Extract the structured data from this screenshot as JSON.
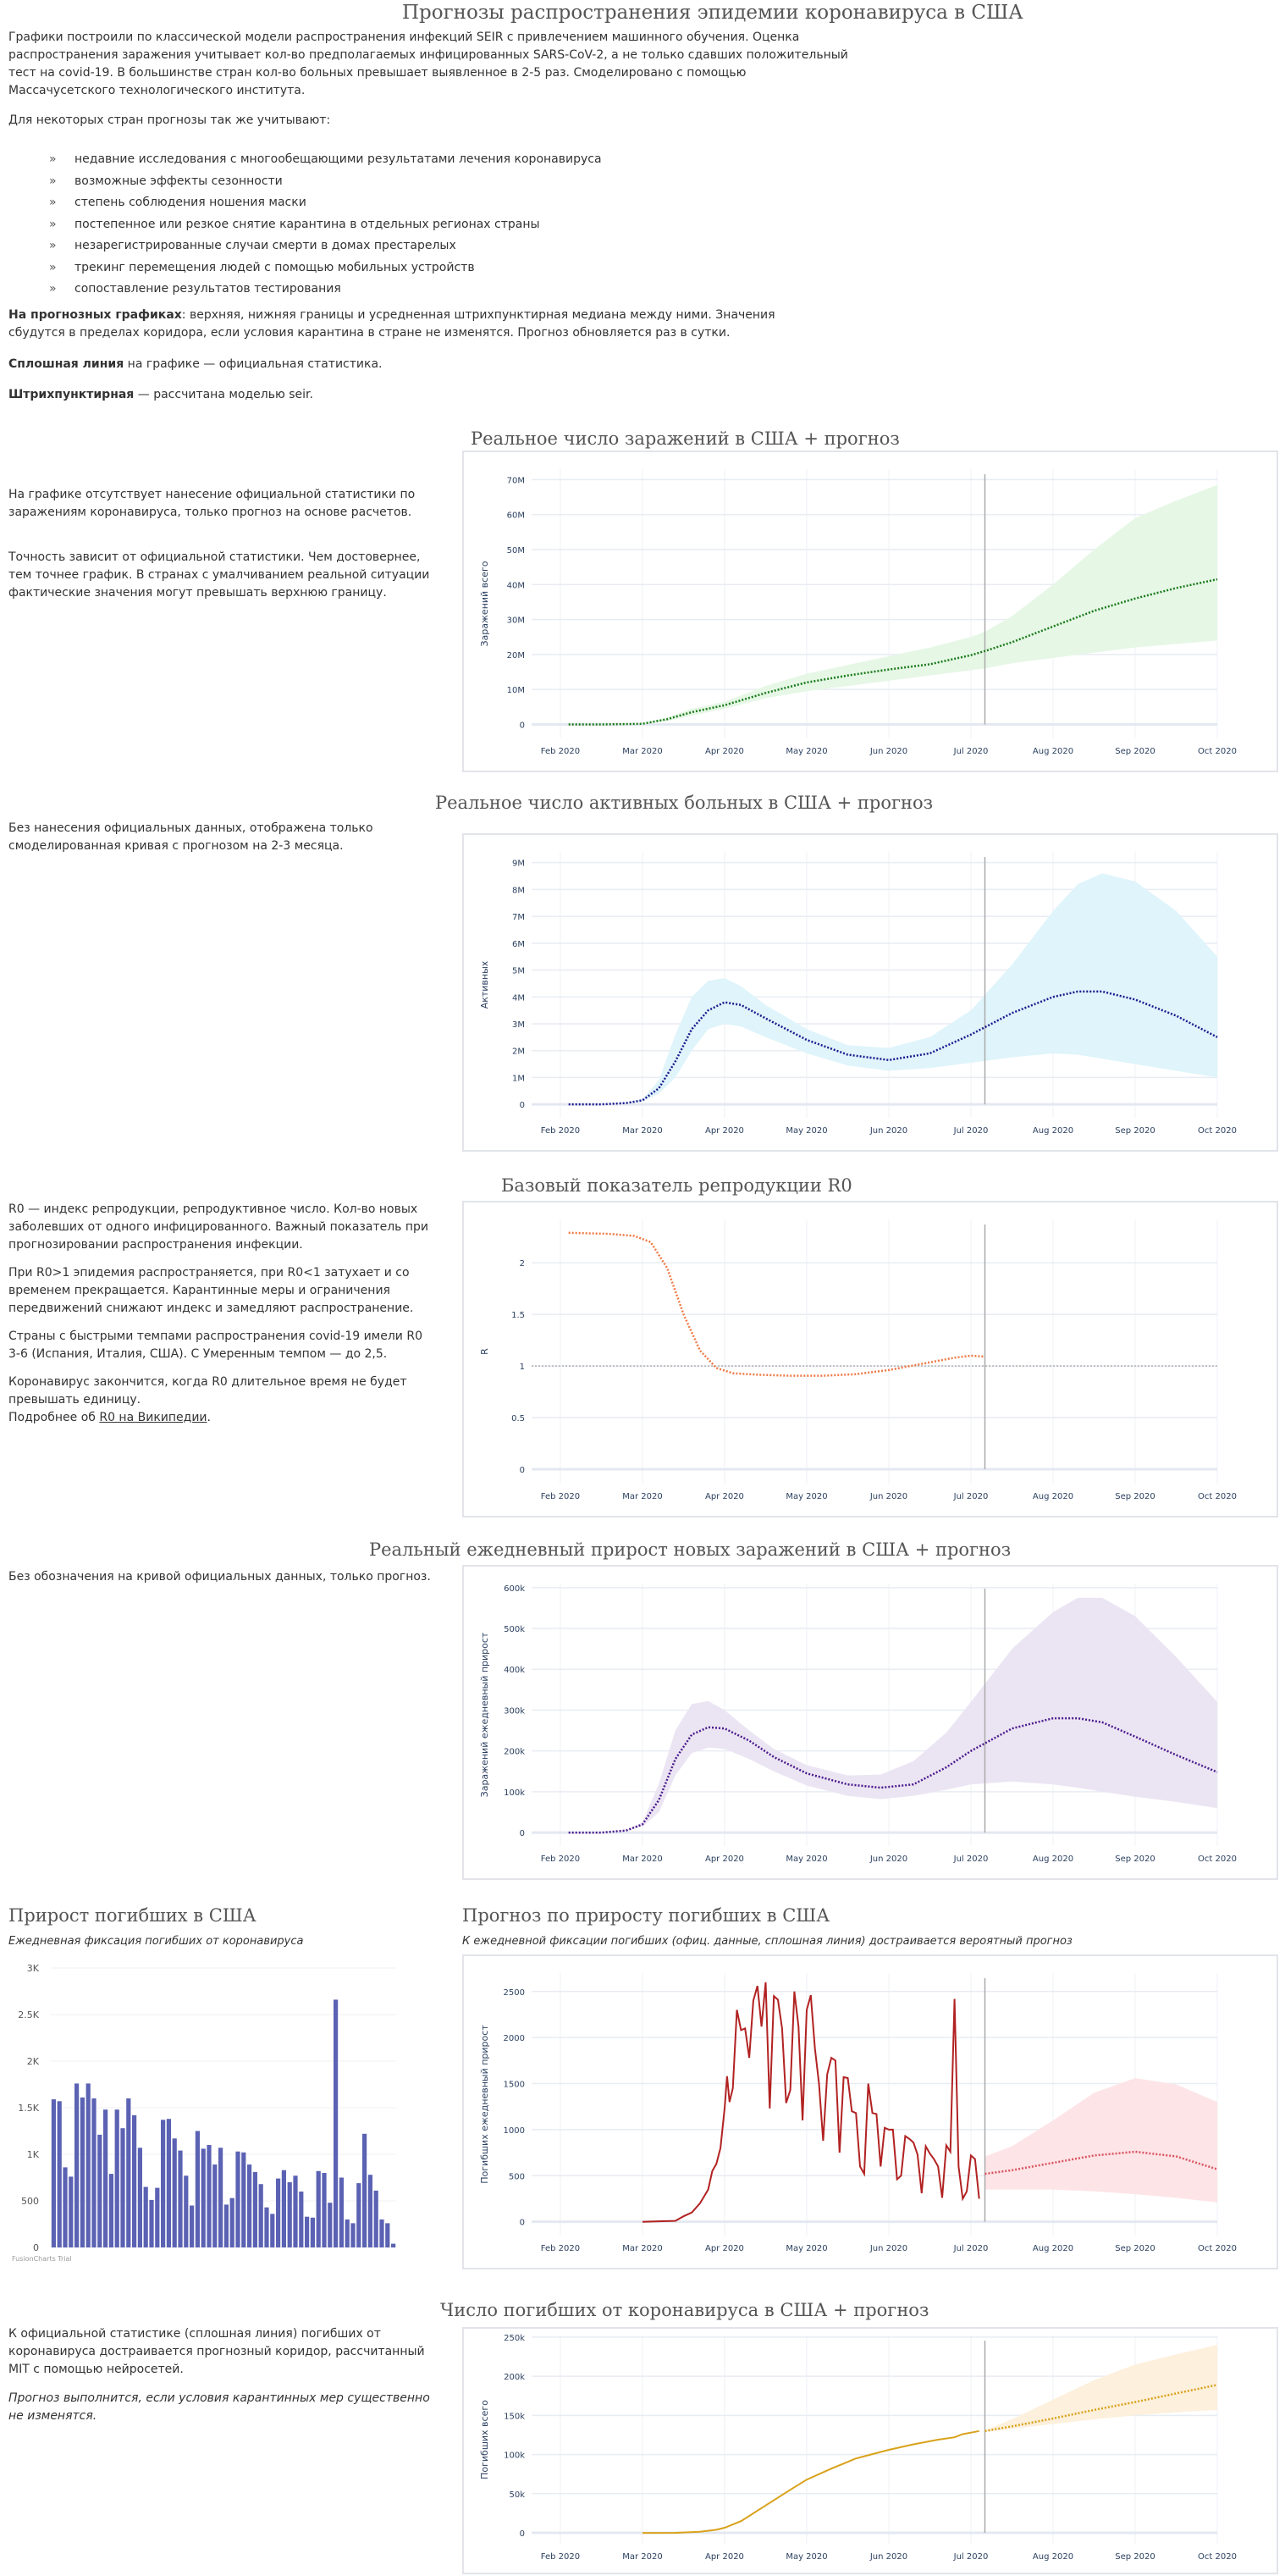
{
  "page": {
    "title": "Прогнозы распространения эпидемии коронавируса в США",
    "intro": "Графики построили по классической модели распространения инфекций SEIR с привлечением машинного обучения. Оценка распространения заражения учитывает кол-во предполагаемых инфицированных SARS-CoV-2, а не только сдавших положительный тест на covid-19. В большинстве стран кол-во больных превышает выявленное в 2-5 раз. Смоделировано с помощью Массачусетского технологического института.",
    "factors_intro": "Для некоторых стран прогнозы так же учитывают:",
    "bullet_mark": "»",
    "factors": [
      "недавние исследования с многообещающими результатами лечения коронавируса",
      "возможные эффекты сезонности",
      "степень соблюдения ношения маски",
      "постепенное или резкое снятие карантина в отдельных регионах страны",
      "незарегистрированные случаи смерти в домах престарелых",
      "трекинг перемещения людей с помощью мобильных устройств",
      "сопоставление результатов тестирования"
    ],
    "legend_note_bold": "На прогнозных графиках",
    "legend_note": ": верхняя, нижняя границы и усредненная штрихпунктирная медиана между ними. Значения сбудутся в пределах коридора, если условия карантина в стране не изменятся. Прогноз обновляется раз в сутки.",
    "solid_bold": "Сплошная линия",
    "solid_text": " на графике — официальная статистика.",
    "dashed_bold": "Штрихпунктирная",
    "dashed_text": " — рассчитана моделью seir."
  },
  "sections": {
    "infections": {
      "title": "Реальное число заражений в США + прогноз",
      "text1": "На графике отсутствует нанесение официальной статистики по заражениям коронавируса, только прогноз на основе расчетов.",
      "text2": "Точность зависит от официальной статистики. Чем достовернее, тем точнее график. В странах с умалчиванием реальной ситуации фактические значения могут превышать верхнюю границу."
    },
    "active": {
      "title": "Реальное число активных больных в США + прогноз",
      "text1": "Без нанесения официальных данных, отображена только смоделированная кривая с прогнозом на 2-3 месяца."
    },
    "r0": {
      "title": "Базовый показатель репродукции R0",
      "text1": "R0 — индекс репродукции, репродуктивное число. Кол-во новых заболевших от одного инфицированного. Важный показатель при прогнозировании распространения инфекции.",
      "text2": "При R0>1 эпидемия распространяется, при R0<1 затухает и со временем прекращается. Карантинные меры и ограничения передвижений снижают индекс и замедляют распространение.",
      "text3": "Страны с быстрыми темпами распространения covid-19 имели R0 3-6 (Испания, Италия, США). С Умеренным темпом — до 2,5.",
      "text4": "Коронавирус закончится, когда R0 длительное время не будет превышать единицу.",
      "more_prefix": "Подробнее об ",
      "more_link": "R0 на Википедии",
      "more_suffix": "."
    },
    "daily": {
      "title": "Реальный ежедневный прирост новых заражений в США + прогноз",
      "text1": "Без обозначения на кривой официальных данных, только прогноз."
    },
    "deaths_bar": {
      "title": "Прирост погибших в США",
      "subtitle": "Ежедневная фиксация погибших от коронавируса",
      "watermark": "FusionCharts Trial"
    },
    "deaths_daily": {
      "title": "Прогноз по приросту погибших в США",
      "subtitle": "К ежедневной фиксации погибших (офиц. данные, сплошная линия) достраивается вероятный прогноз"
    },
    "deaths_total": {
      "title": "Число погибших от коронавируса в США + прогноз",
      "text1": "К официальной статистике (сплошная линия) погибших от коронавируса достраивается прогнозный коридор, рассчитанный MIT с помощью нейросетей.",
      "text2": "Прогноз выполнится, если условия карантинных мер существенно не изменятся."
    }
  },
  "chart_data": [
    {
      "id": "infections",
      "type": "area",
      "title": "Реальное число заражений в США + прогноз",
      "ylabel": "Заражений всего",
      "xlabel": "",
      "x_ticks": [
        "Feb 2020",
        "Mar 2020",
        "Apr 2020",
        "May 2020",
        "Jun 2020",
        "Jul 2020",
        "Aug 2020",
        "Sep 2020",
        "Oct 2020"
      ],
      "x_range_months": [
        -0.35,
        8
      ],
      "y_ticks": [
        0,
        10000000,
        20000000,
        30000000,
        40000000,
        50000000,
        60000000,
        70000000
      ],
      "y_tick_labels": [
        "0",
        "10M",
        "20M",
        "30M",
        "40M",
        "50M",
        "60M",
        "70M"
      ],
      "ylim": [
        -4000000,
        73000000
      ],
      "today_month": 5.17,
      "color": "#1a7a1a",
      "band_color": "#e6f7e6",
      "x_months": [
        0.1,
        0.5,
        1.0,
        1.3,
        1.6,
        2.0,
        2.5,
        3.0,
        3.5,
        4.0,
        4.5,
        5.0,
        5.17,
        5.5,
        6.0,
        6.5,
        7.0,
        7.5,
        8.0
      ],
      "median": [
        0,
        0,
        200000.0,
        1500000.0,
        3500000.0,
        5500000.0,
        9000000.0,
        12000000.0,
        14000000.0,
        15700000.0,
        17200000.0,
        19800000.0,
        21000000.0,
        23500000.0,
        28000000.0,
        32500000.0,
        36000000.0,
        39000000.0,
        41500000.0
      ],
      "upper": [
        0,
        0,
        300000.0,
        2000000.0,
        4500000.0,
        6500000.0,
        11000000.0,
        14500000.0,
        17000000.0,
        19500000.0,
        22000000.0,
        25000000.0,
        26500000.0,
        31000000.0,
        40000000.0,
        50000000.0,
        59000000.0,
        64000000.0,
        68500000.0
      ],
      "lower": [
        0,
        0,
        100000.0,
        1000000.0,
        2500000.0,
        4500000.0,
        7500000.0,
        9500000.0,
        11000000.0,
        12500000.0,
        14000000.0,
        15500000.0,
        16000000.0,
        17500000.0,
        19000000.0,
        20500000.0,
        22000000.0,
        23000000.0,
        24000000.0
      ],
      "grid": true
    },
    {
      "id": "active",
      "type": "area",
      "title": "Реальное число активных больных в США + прогноз",
      "ylabel": "Активных",
      "x_ticks": [
        "Feb 2020",
        "Mar 2020",
        "Apr 2020",
        "May 2020",
        "Jun 2020",
        "Jul 2020",
        "Aug 2020",
        "Sep 2020",
        "Oct 2020"
      ],
      "x_range_months": [
        -0.35,
        8
      ],
      "y_ticks": [
        0,
        1000000,
        2000000,
        3000000,
        4000000,
        5000000,
        6000000,
        7000000,
        8000000,
        9000000
      ],
      "y_tick_labels": [
        "0",
        "1M",
        "2M",
        "3M",
        "4M",
        "5M",
        "6M",
        "7M",
        "8M",
        "9M"
      ],
      "ylim": [
        -500000,
        9400000
      ],
      "today_month": 5.17,
      "color": "#1a1a8c",
      "band_color": "#dff4fb",
      "x_months": [
        0.1,
        0.5,
        0.8,
        1.0,
        1.2,
        1.4,
        1.6,
        1.8,
        2.0,
        2.2,
        2.5,
        3.0,
        3.5,
        4.0,
        4.5,
        5.0,
        5.5,
        6.0,
        6.3,
        6.6,
        7.0,
        7.5,
        8.0
      ],
      "median": [
        0,
        0,
        50000.0,
        150000.0,
        600000.0,
        1600000.0,
        2800000.0,
        3500000.0,
        3800000.0,
        3700000.0,
        3200000.0,
        2400000.0,
        1850000.0,
        1650000.0,
        1900000.0,
        2600000.0,
        3400000.0,
        4000000.0,
        4200000.0,
        4200000.0,
        3900000.0,
        3300000.0,
        2500000.0
      ],
      "upper": [
        0,
        0,
        60000.0,
        200000.0,
        900000.0,
        2600000.0,
        4000000.0,
        4600000.0,
        4700000.0,
        4400000.0,
        3700000.0,
        2800000.0,
        2200000.0,
        2100000.0,
        2500000.0,
        3500000.0,
        5200000.0,
        7200000.0,
        8200000.0,
        8600000.0,
        8300000.0,
        7200000.0,
        5500000.0
      ],
      "lower": [
        0,
        0,
        40000.0,
        100000.0,
        400000.0,
        1000000.0,
        2000000.0,
        2800000.0,
        3000000.0,
        2900000.0,
        2500000.0,
        1900000.0,
        1450000.0,
        1250000.0,
        1350000.0,
        1550000.0,
        1750000.0,
        1900000.0,
        1850000.0,
        1700000.0,
        1500000.0,
        1250000.0,
        1000000.0
      ],
      "grid": true
    },
    {
      "id": "r0",
      "type": "line",
      "title": "Базовый показатель репродукции R0",
      "ylabel": "R",
      "x_ticks": [
        "Feb 2020",
        "Mar 2020",
        "Apr 2020",
        "May 2020",
        "Jun 2020",
        "Jul 2020",
        "Aug 2020",
        "Sep 2020",
        "Oct 2020"
      ],
      "x_range_months": [
        -0.35,
        8
      ],
      "y_ticks": [
        0,
        0.5,
        1,
        1.5,
        2
      ],
      "y_tick_labels": [
        "0",
        "0.5",
        "1",
        "1.5",
        "2"
      ],
      "ylim": [
        -0.14,
        2.42
      ],
      "today_month": 5.17,
      "reference_line": 1,
      "color": "#f07a45",
      "x_months": [
        0.1,
        0.6,
        0.9,
        1.1,
        1.3,
        1.5,
        1.7,
        1.9,
        2.1,
        2.4,
        2.8,
        3.2,
        3.6,
        4.0,
        4.4,
        4.8,
        5.0,
        5.17
      ],
      "values": [
        2.29,
        2.28,
        2.26,
        2.2,
        1.95,
        1.5,
        1.15,
        0.98,
        0.93,
        0.915,
        0.905,
        0.905,
        0.92,
        0.96,
        1.02,
        1.08,
        1.1,
        1.09
      ],
      "grid": true
    },
    {
      "id": "daily",
      "type": "area",
      "title": "Реальный ежедневный прирост новых заражений в США + прогноз",
      "ylabel": "Заражений ежедневный прирост",
      "x_ticks": [
        "Feb 2020",
        "Mar 2020",
        "Apr 2020",
        "May 2020",
        "Jun 2020",
        "Jul 2020",
        "Aug 2020",
        "Sep 2020",
        "Oct 2020"
      ],
      "x_range_months": [
        -0.35,
        8
      ],
      "y_ticks": [
        0,
        100000,
        200000,
        300000,
        400000,
        500000,
        600000
      ],
      "y_tick_labels": [
        "0",
        "100k",
        "200k",
        "300k",
        "400k",
        "500k",
        "600k"
      ],
      "ylim": [
        -33000,
        610000
      ],
      "today_month": 5.17,
      "color": "#4b1a8c",
      "band_color": "#ebe5f3",
      "x_months": [
        0.1,
        0.5,
        0.8,
        1.0,
        1.2,
        1.4,
        1.6,
        1.8,
        2.0,
        2.3,
        2.6,
        3.0,
        3.5,
        3.9,
        4.3,
        4.7,
        5.0,
        5.5,
        6.0,
        6.3,
        6.6,
        7.0,
        7.5,
        8.0
      ],
      "median": [
        0,
        0,
        5000.0,
        20000.0,
        80000.0,
        180000.0,
        240000.0,
        258000.0,
        255000.0,
        225000.0,
        185000.0,
        145000.0,
        118000.0,
        110000.0,
        118000.0,
        160000.0,
        200000.0,
        255000.0,
        280000.0,
        280000.0,
        270000.0,
        235000.0,
        190000.0,
        148000.0
      ],
      "upper": [
        0,
        0,
        6000.0,
        25000.0,
        120000.0,
        250000.0,
        315000.0,
        322000.0,
        300000.0,
        250000.0,
        205000.0,
        165000.0,
        140000.0,
        142000.0,
        175000.0,
        245000.0,
        320000.0,
        450000.0,
        540000.0,
        575000.0,
        575000.0,
        530000.0,
        430000.0,
        320000.0
      ],
      "lower": [
        0,
        0,
        4000.0,
        15000.0,
        50000.0,
        140000.0,
        195000.0,
        208000.0,
        205000.0,
        180000.0,
        150000.0,
        115000.0,
        90000.0,
        82000.0,
        90000.0,
        105000.0,
        118000.0,
        125000.0,
        118000.0,
        110000.0,
        100000.0,
        88000.0,
        75000.0,
        60000.0
      ],
      "grid": true
    },
    {
      "id": "deaths_bar",
      "type": "bar",
      "title": "Прирост погибших в США",
      "subtitle": "Ежедневная фиксация погибших от коронавируса",
      "y_ticks": [
        0,
        500,
        1000,
        1500,
        2000,
        2500,
        3000
      ],
      "y_tick_labels": [
        "0",
        "500",
        "1K",
        "1.5K",
        "2K",
        "2.5K",
        "3K"
      ],
      "ylim": [
        0,
        3000
      ],
      "color": "#5b62b3",
      "values": [
        1590,
        1570,
        860,
        760,
        1760,
        1610,
        1760,
        1600,
        1210,
        1480,
        790,
        1480,
        1280,
        1600,
        1420,
        1070,
        650,
        510,
        640,
        1370,
        1380,
        1170,
        1040,
        770,
        450,
        1250,
        1060,
        1100,
        890,
        1070,
        460,
        530,
        1030,
        1020,
        890,
        810,
        680,
        430,
        360,
        740,
        830,
        700,
        770,
        600,
        330,
        320,
        820,
        800,
        480,
        2660,
        750,
        300,
        260,
        690,
        1220,
        780,
        610,
        300,
        260,
        40
      ],
      "grid": true
    },
    {
      "id": "deaths_daily",
      "type": "line",
      "title": "Прогноз по приросту погибших в США",
      "ylabel": "Погибших ежедневный прирост",
      "x_ticks": [
        "Feb 2020",
        "Mar 2020",
        "Apr 2020",
        "May 2020",
        "Jun 2020",
        "Jul 2020",
        "Aug 2020",
        "Sep 2020",
        "Oct 2020"
      ],
      "x_range_months": [
        -0.35,
        8
      ],
      "y_ticks": [
        0,
        500,
        1000,
        1500,
        2000,
        2500
      ],
      "y_tick_labels": [
        "0",
        "500",
        "1000",
        "1500",
        "2000",
        "2500"
      ],
      "ylim": [
        -150,
        2700
      ],
      "today_month": 5.17,
      "official_color": "#b22222",
      "forecast_color": "#d9535e",
      "band_color": "#fde4e7",
      "official_x_months": [
        1.0,
        1.2,
        1.4,
        1.5,
        1.6,
        1.7,
        1.8,
        1.85,
        1.9,
        1.95,
        2.0,
        2.03,
        2.06,
        2.1,
        2.15,
        2.2,
        2.25,
        2.3,
        2.35,
        2.4,
        2.45,
        2.5,
        2.55,
        2.6,
        2.65,
        2.7,
        2.75,
        2.8,
        2.85,
        2.9,
        2.95,
        3.0,
        3.05,
        3.1,
        3.15,
        3.2,
        3.25,
        3.3,
        3.35,
        3.4,
        3.45,
        3.5,
        3.55,
        3.6,
        3.65,
        3.7,
        3.75,
        3.8,
        3.85,
        3.9,
        3.95,
        4.0,
        4.05,
        4.1,
        4.15,
        4.2,
        4.25,
        4.3,
        4.35,
        4.4,
        4.45,
        4.5,
        4.55,
        4.6,
        4.65,
        4.7,
        4.75,
        4.8,
        4.85,
        4.9,
        4.95,
        5.0,
        5.05,
        5.1
      ],
      "official": [
        0,
        5,
        10,
        60,
        100,
        200,
        350,
        550,
        630,
        800,
        1230,
        1580,
        1300,
        1450,
        2300,
        2080,
        2100,
        1780,
        2400,
        2560,
        2120,
        2600,
        1230,
        2450,
        2410,
        2100,
        1290,
        1430,
        2500,
        2120,
        1100,
        2300,
        2460,
        1880,
        1500,
        880,
        1600,
        1780,
        1750,
        750,
        1570,
        1560,
        1200,
        1180,
        600,
        520,
        1500,
        1180,
        1170,
        600,
        1020,
        1000,
        1000,
        460,
        500,
        930,
        900,
        860,
        730,
        310,
        820,
        740,
        680,
        600,
        260,
        830,
        760,
        2420,
        600,
        250,
        330,
        720,
        680,
        250
      ],
      "forecast_x_months": [
        5.17,
        5.5,
        6.0,
        6.5,
        7.0,
        7.5,
        8.0
      ],
      "median": [
        520,
        560,
        640,
        720,
        760,
        710,
        570
      ],
      "upper": [
        710,
        820,
        1100,
        1400,
        1560,
        1490,
        1300
      ],
      "lower": [
        350,
        350,
        350,
        330,
        300,
        260,
        210
      ],
      "grid": true
    },
    {
      "id": "deaths_total",
      "type": "line",
      "title": "Число погибших от коронавируса в США + прогноз",
      "ylabel": "Погибших всего",
      "x_ticks": [
        "Feb 2020",
        "Mar 2020",
        "Apr 2020",
        "May 2020",
        "Jun 2020",
        "Jul 2020",
        "Aug 2020",
        "Sep 2020",
        "Oct 2020"
      ],
      "x_range_months": [
        -0.35,
        8
      ],
      "y_ticks": [
        0,
        50000,
        100000,
        150000,
        200000,
        250000
      ],
      "y_tick_labels": [
        "0",
        "50k",
        "100k",
        "150k",
        "200k",
        "250k"
      ],
      "ylim": [
        -14000,
        252000
      ],
      "today_month": 5.17,
      "official_color": "#d9a21b",
      "band_color": "#fdf0dc",
      "official_x_months": [
        1.0,
        1.4,
        1.7,
        1.9,
        2.0,
        2.2,
        2.5,
        2.8,
        3.0,
        3.3,
        3.6,
        4.0,
        4.3,
        4.6,
        4.8,
        4.9,
        5.0,
        5.1
      ],
      "official": [
        0,
        100,
        1500,
        4000,
        6500,
        15000,
        35000,
        55000,
        68000,
        82000,
        95000,
        106000,
        113000,
        119000,
        122000,
        126000,
        128000,
        130000
      ],
      "forecast_x_months": [
        5.17,
        5.5,
        6.0,
        6.5,
        7.0,
        7.5,
        8.0
      ],
      "median": [
        130000,
        136000,
        146000,
        157000,
        167000,
        178000,
        189000
      ],
      "upper": [
        131000,
        145000,
        170000,
        195000,
        215000,
        228000,
        240000
      ],
      "lower": [
        129000,
        133000,
        139000,
        145000,
        150000,
        154000,
        157000
      ],
      "grid": true
    }
  ]
}
